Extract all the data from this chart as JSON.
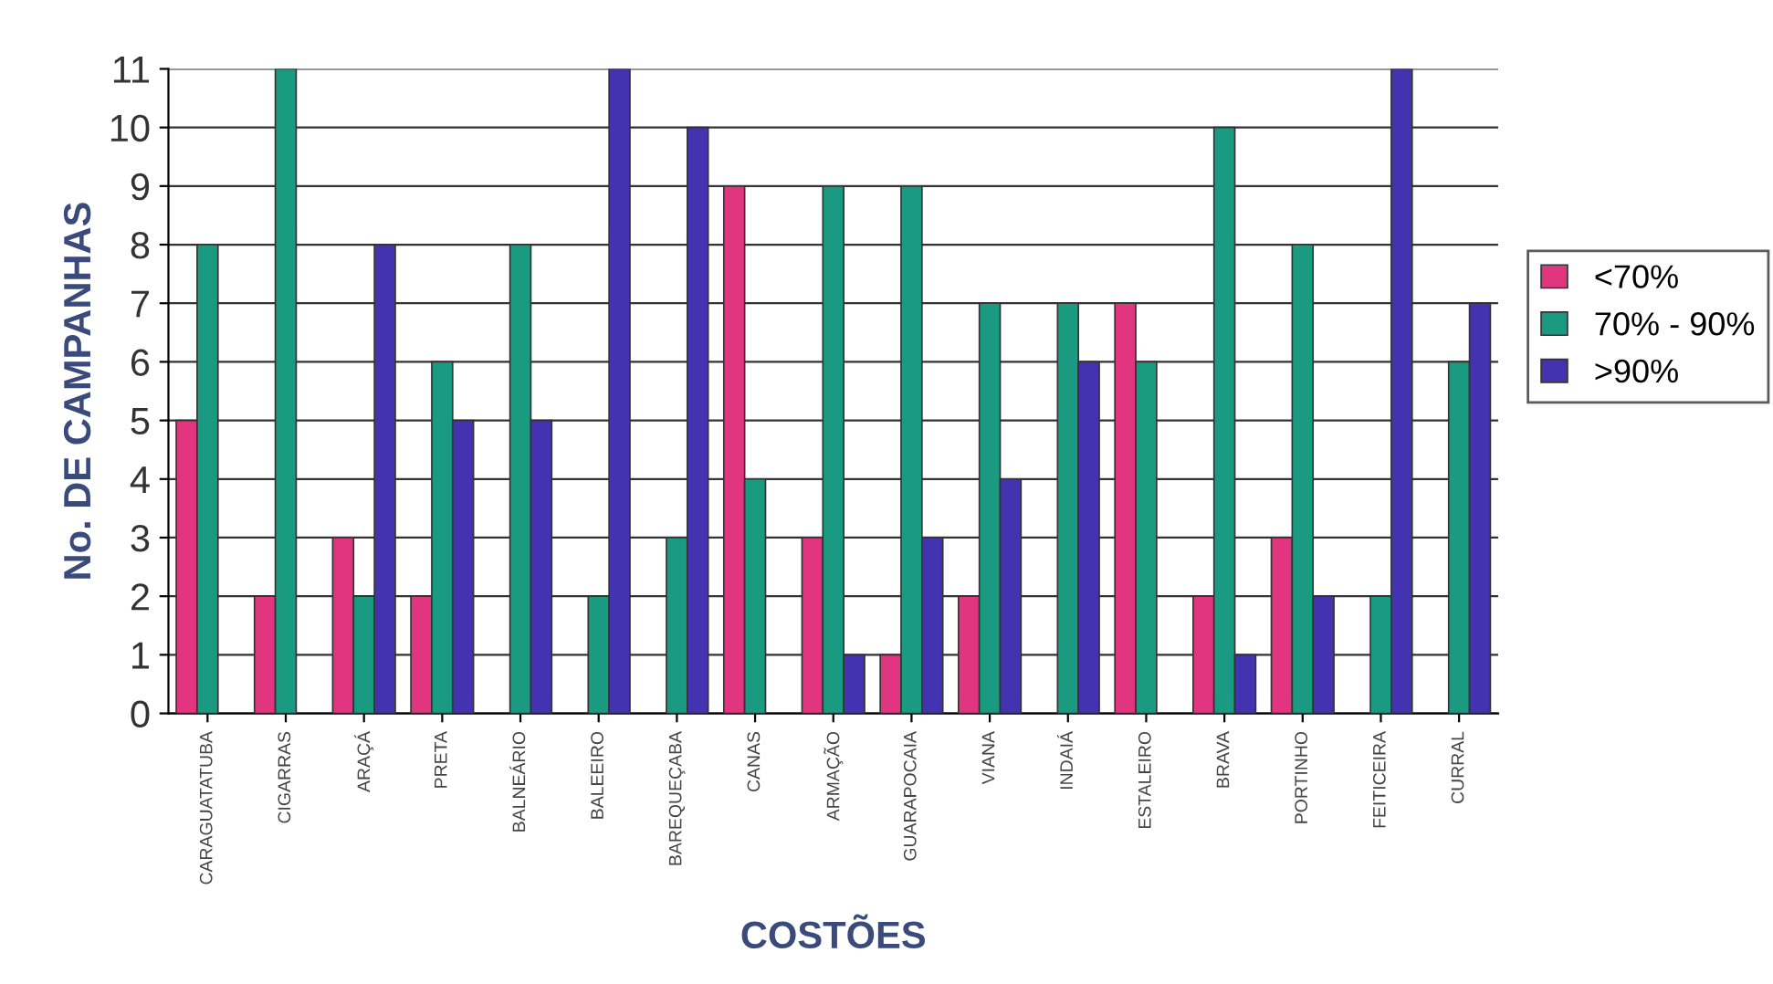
{
  "chart_data": {
    "type": "bar",
    "xlabel": "COSTÕES",
    "ylabel": "No. DE CAMPANHAS",
    "categories": [
      "CARAGUATATUBA",
      "CIGARRAS",
      "ARAÇÁ",
      "PRETA",
      "BALNEÁRIO",
      "BALEEIRO",
      "BAREQUEÇABA",
      "CANAS",
      "ARMAÇÃO",
      "GUARAPOCAIA",
      "VIANA",
      "INDAIÁ",
      "ESTALEIRO",
      "BRAVA",
      "PORTINHO",
      "FEITICEIRA",
      "CURRAL"
    ],
    "series": [
      {
        "name": "<70%",
        "color": "#e2357f",
        "values": [
          5,
          2,
          3,
          2,
          null,
          null,
          null,
          9,
          3,
          1,
          2,
          null,
          7,
          2,
          3,
          null,
          null
        ]
      },
      {
        "name": "70% - 90%",
        "color": "#1b9a82",
        "values": [
          8,
          11,
          2,
          6,
          8,
          2,
          3,
          4,
          9,
          9,
          7,
          7,
          6,
          10,
          8,
          2,
          6
        ]
      },
      {
        "name": ">90%",
        "color": "#4433b0",
        "values": [
          null,
          null,
          8,
          5,
          5,
          11,
          10,
          null,
          1,
          3,
          4,
          6,
          null,
          1,
          2,
          11,
          7
        ]
      }
    ],
    "ylim": [
      0,
      11
    ],
    "yticks": [
      0,
      1,
      2,
      3,
      4,
      5,
      6,
      7,
      8,
      9,
      10,
      11
    ],
    "grid": "y",
    "legend": "right"
  }
}
